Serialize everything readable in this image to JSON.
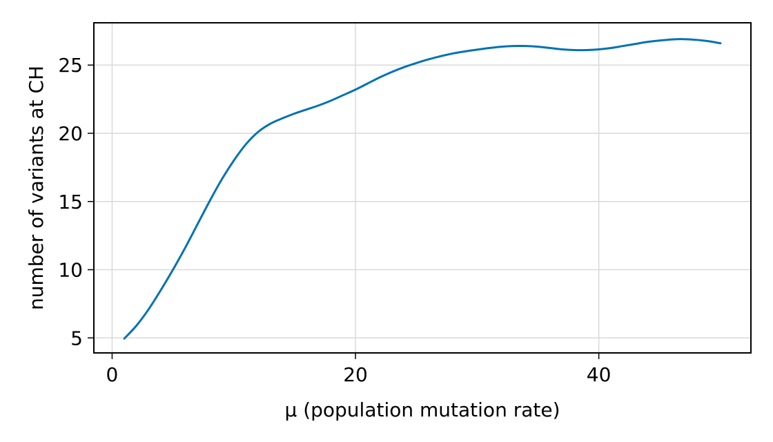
{
  "chart_data": {
    "type": "line",
    "title": "",
    "xlabel": "μ (population mutation rate)",
    "ylabel": "number of variants at CH",
    "xlim": [
      -1.5,
      52.5
    ],
    "ylim": [
      3.9,
      28.1
    ],
    "x_ticks": [
      0,
      20,
      40
    ],
    "x_tick_labels": [
      "0",
      "20",
      "40"
    ],
    "y_ticks": [
      5,
      10,
      15,
      20,
      25
    ],
    "y_tick_labels": [
      "5",
      "10",
      "15",
      "20",
      "25"
    ],
    "grid": true,
    "legend": "none",
    "series": [
      {
        "color": "#0072b2",
        "x": [
          1,
          2,
          3,
          4,
          5,
          6,
          7,
          8,
          9,
          10,
          11,
          12,
          13,
          14,
          15,
          16,
          17,
          18,
          19,
          20,
          21,
          22,
          23,
          24,
          25,
          26,
          27,
          28,
          29,
          30,
          31,
          32,
          33,
          34,
          35,
          36,
          37,
          38,
          39,
          40,
          41,
          42,
          43,
          44,
          45,
          46,
          47,
          48,
          49,
          50
        ],
        "y": [
          4.95,
          5.9,
          7.1,
          8.5,
          10.0,
          11.6,
          13.3,
          15.0,
          16.6,
          18.0,
          19.2,
          20.1,
          20.7,
          21.1,
          21.45,
          21.75,
          22.05,
          22.4,
          22.8,
          23.2,
          23.65,
          24.1,
          24.5,
          24.85,
          25.15,
          25.42,
          25.65,
          25.85,
          26.0,
          26.13,
          26.25,
          26.35,
          26.4,
          26.4,
          26.35,
          26.25,
          26.15,
          26.1,
          26.1,
          26.15,
          26.25,
          26.4,
          26.55,
          26.7,
          26.8,
          26.88,
          26.9,
          26.85,
          26.75,
          26.6
        ]
      }
    ]
  }
}
